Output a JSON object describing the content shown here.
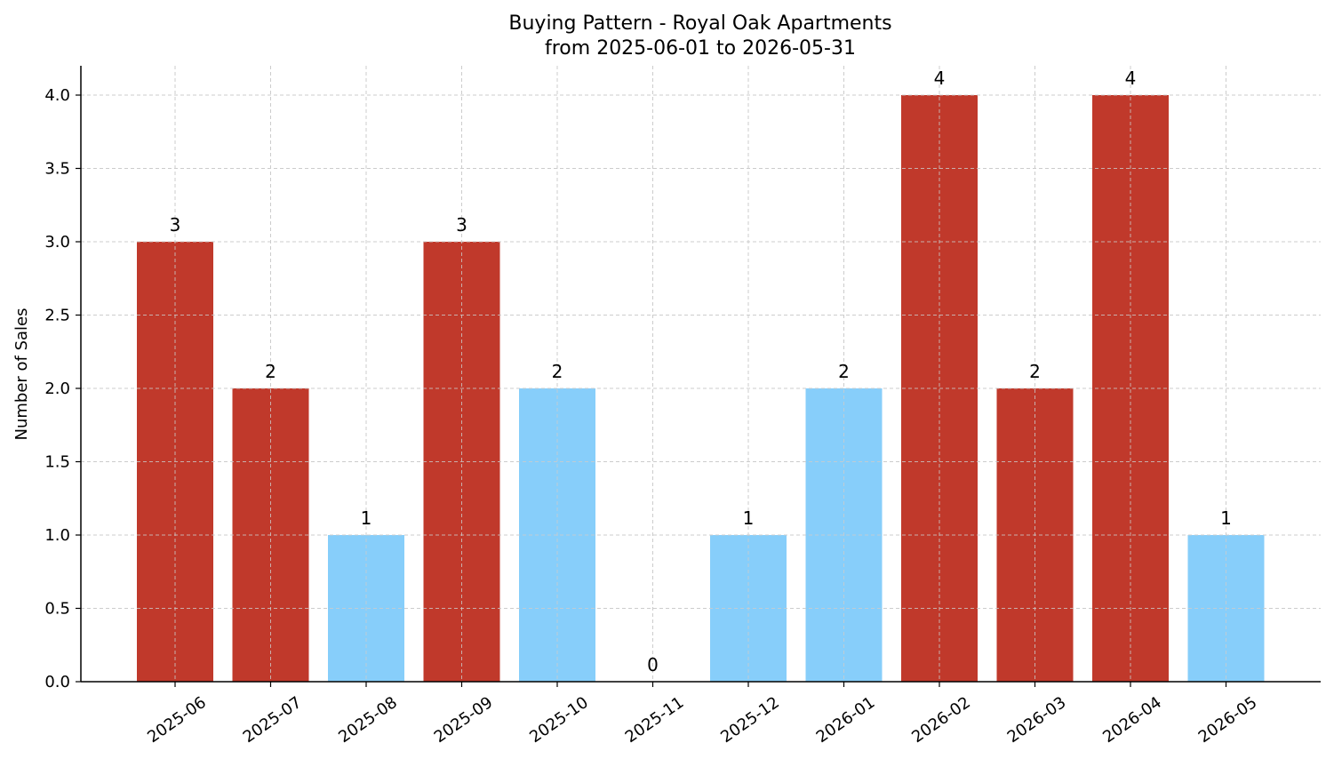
{
  "chart_data": {
    "type": "bar",
    "title": "Buying Pattern - Royal Oak Apartments",
    "subtitle": "from 2025-06-01 to 2026-05-31",
    "xlabel": "",
    "ylabel": "Number of Sales",
    "categories": [
      "2025-06",
      "2025-07",
      "2025-08",
      "2025-09",
      "2025-10",
      "2025-11",
      "2025-12",
      "2026-01",
      "2026-02",
      "2026-03",
      "2026-04",
      "2026-05"
    ],
    "values": [
      3,
      2,
      1,
      3,
      2,
      0,
      1,
      2,
      4,
      2,
      4,
      1
    ],
    "data_labels": [
      "3",
      "2",
      "1",
      "3",
      "2",
      "0",
      "1",
      "2",
      "4",
      "2",
      "4",
      "1"
    ],
    "ylim": [
      0,
      4.2
    ],
    "yticks": [
      0.0,
      0.5,
      1.0,
      1.5,
      2.0,
      2.5,
      3.0,
      3.5,
      4.0
    ],
    "ytick_labels": [
      "0.0",
      "0.5",
      "1.0",
      "1.5",
      "2.0",
      "2.5",
      "3.0",
      "3.5",
      "4.0"
    ],
    "grid": true,
    "colors": {
      "high": "#c0392b",
      "low": "#87cefa"
    },
    "color_threshold": 2,
    "bar_colors": [
      "high",
      "high",
      "low",
      "high",
      "low",
      "low",
      "low",
      "low",
      "high",
      "high",
      "high",
      "low"
    ]
  }
}
